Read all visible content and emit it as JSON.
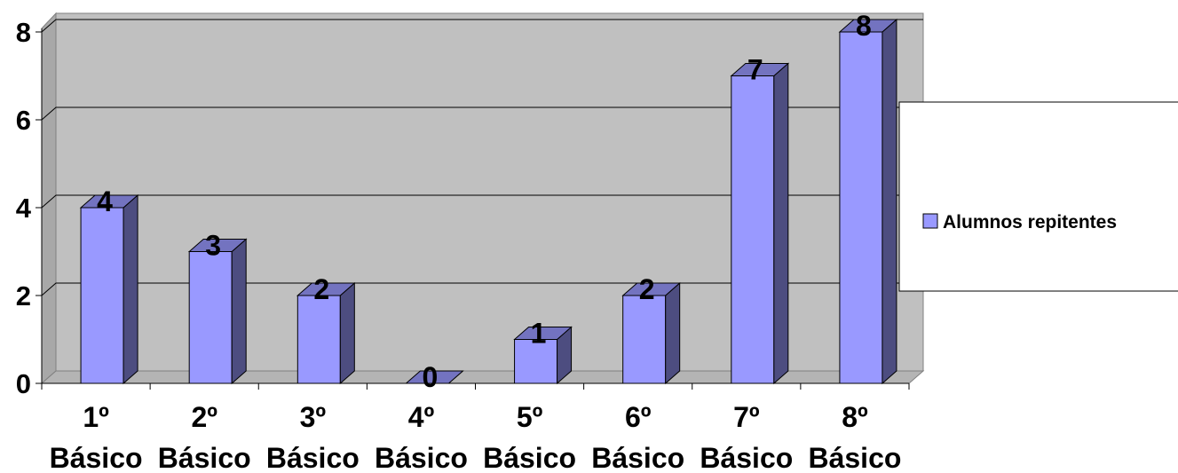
{
  "chart_data": {
    "type": "bar",
    "categories": [
      [
        "1º",
        "Básico"
      ],
      [
        "2º",
        "Básico"
      ],
      [
        "3º",
        "Básico"
      ],
      [
        "4º",
        "Básico"
      ],
      [
        "5º",
        "Básico"
      ],
      [
        "6º",
        "Básico"
      ],
      [
        "7º",
        "Básico"
      ],
      [
        "8º",
        "Básico"
      ]
    ],
    "series": [
      {
        "name": "Alumnos repitentes",
        "values": [
          4,
          3,
          2,
          0,
          1,
          2,
          7,
          8
        ],
        "color": "#9999ff"
      }
    ],
    "ylim": [
      0,
      8
    ],
    "yticks": [
      "0",
      "2",
      "4",
      "6",
      "8"
    ],
    "grid": true,
    "legend": "right",
    "data_labels": [
      "4",
      "3",
      "2",
      "0",
      "1",
      "2",
      "7",
      "8"
    ],
    "colors": {
      "plot_back": "#c0c0c0",
      "bar_front": "#9999ff",
      "bar_side": "#4d4d80",
      "bar_top": "#7373c0",
      "gridline": "#000000"
    }
  }
}
